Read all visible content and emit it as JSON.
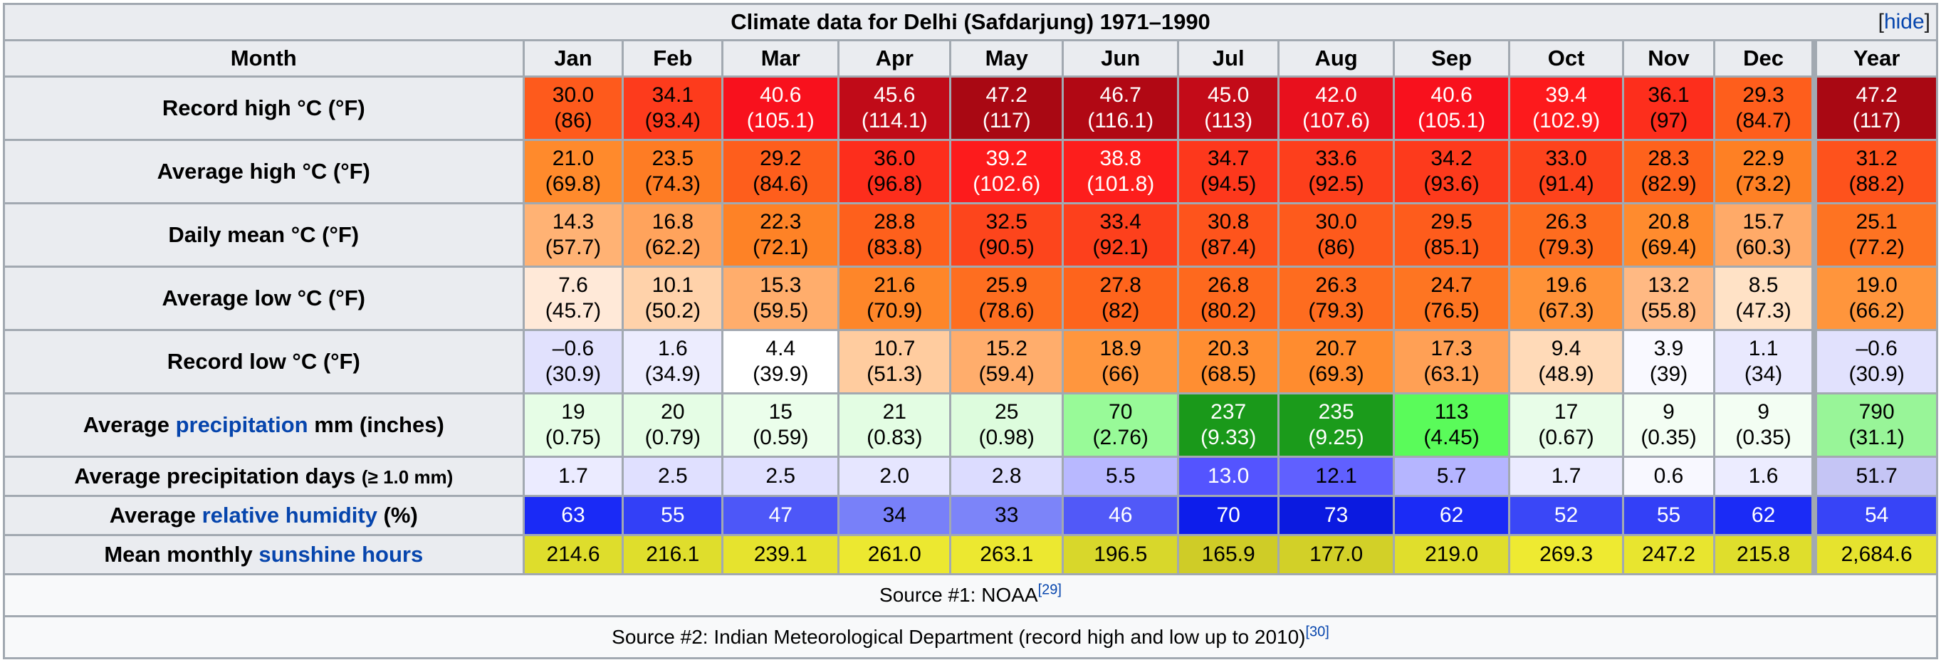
{
  "title": "Climate data for Delhi (Safdarjung) 1971–1990",
  "hide_link": {
    "open": "[",
    "label": "hide",
    "close": "]"
  },
  "header": {
    "month_label": "Month",
    "months": [
      "Jan",
      "Feb",
      "Mar",
      "Apr",
      "May",
      "Jun",
      "Jul",
      "Aug",
      "Sep",
      "Oct",
      "Nov",
      "Dec"
    ],
    "year_label": "Year"
  },
  "rows": [
    {
      "label_parts": [
        {
          "text": "Record high °C (°F)",
          "link": false
        }
      ],
      "cells": [
        {
          "c": "30.0",
          "f": "(86)",
          "bg": "#fe5a1c",
          "fg": "#000000"
        },
        {
          "c": "34.1",
          "f": "(93.4)",
          "bg": "#fd3b1c",
          "fg": "#000000"
        },
        {
          "c": "40.6",
          "f": "(105.1)",
          "bg": "#f8111d",
          "fg": "#ffffff"
        },
        {
          "c": "45.6",
          "f": "(114.1)",
          "bg": "#c00b18",
          "fg": "#ffffff"
        },
        {
          "c": "47.2",
          "f": "(117)",
          "bg": "#a90813",
          "fg": "#ffffff"
        },
        {
          "c": "46.7",
          "f": "(116.1)",
          "bg": "#b10814",
          "fg": "#ffffff"
        },
        {
          "c": "45.0",
          "f": "(113)",
          "bg": "#c30b18",
          "fg": "#ffffff"
        },
        {
          "c": "42.0",
          "f": "(107.6)",
          "bg": "#e8101d",
          "fg": "#ffffff"
        },
        {
          "c": "40.6",
          "f": "(105.1)",
          "bg": "#f8111d",
          "fg": "#ffffff"
        },
        {
          "c": "39.4",
          "f": "(102.9)",
          "bg": "#fd1a1c",
          "fg": "#ffffff"
        },
        {
          "c": "36.1",
          "f": "(97)",
          "bg": "#fd2e1c",
          "fg": "#000000"
        },
        {
          "c": "29.3",
          "f": "(84.7)",
          "bg": "#fe5e1c",
          "fg": "#000000"
        }
      ],
      "year": {
        "c": "47.2",
        "f": "(117)",
        "bg": "#a90813",
        "fg": "#ffffff"
      }
    },
    {
      "label_parts": [
        {
          "text": "Average high °C (°F)",
          "link": false
        }
      ],
      "cells": [
        {
          "c": "21.0",
          "f": "(69.8)",
          "bg": "#ff8a2c",
          "fg": "#000000"
        },
        {
          "c": "23.5",
          "f": "(74.3)",
          "bg": "#fe7c24",
          "fg": "#000000"
        },
        {
          "c": "29.2",
          "f": "(84.6)",
          "bg": "#fe5e1c",
          "fg": "#000000"
        },
        {
          "c": "36.0",
          "f": "(96.8)",
          "bg": "#fd2e1c",
          "fg": "#000000"
        },
        {
          "c": "39.2",
          "f": "(102.6)",
          "bg": "#fd1b1c",
          "fg": "#ffffff"
        },
        {
          "c": "38.8",
          "f": "(101.8)",
          "bg": "#fd1e1c",
          "fg": "#ffffff"
        },
        {
          "c": "34.7",
          "f": "(94.5)",
          "bg": "#fd381c",
          "fg": "#000000"
        },
        {
          "c": "33.6",
          "f": "(92.5)",
          "bg": "#fd3f1c",
          "fg": "#000000"
        },
        {
          "c": "34.2",
          "f": "(93.6)",
          "bg": "#fd3a1c",
          "fg": "#000000"
        },
        {
          "c": "33.0",
          "f": "(91.4)",
          "bg": "#fd431c",
          "fg": "#000000"
        },
        {
          "c": "28.3",
          "f": "(82.9)",
          "bg": "#fe621c",
          "fg": "#000000"
        },
        {
          "c": "22.9",
          "f": "(73.2)",
          "bg": "#fe8024",
          "fg": "#000000"
        }
      ],
      "year": {
        "c": "31.2",
        "f": "(88.2)",
        "bg": "#fe521c",
        "fg": "#000000"
      }
    },
    {
      "label_parts": [
        {
          "text": "Daily mean °C (°F)",
          "link": false
        }
      ],
      "cells": [
        {
          "c": "14.3",
          "f": "(57.7)",
          "bg": "#ffb274",
          "fg": "#000000"
        },
        {
          "c": "16.8",
          "f": "(62.2)",
          "bg": "#ffa35c",
          "fg": "#000000"
        },
        {
          "c": "22.3",
          "f": "(72.1)",
          "bg": "#fe8226",
          "fg": "#000000"
        },
        {
          "c": "28.8",
          "f": "(83.8)",
          "bg": "#fe601c",
          "fg": "#000000"
        },
        {
          "c": "32.5",
          "f": "(90.5)",
          "bg": "#fd451c",
          "fg": "#000000"
        },
        {
          "c": "33.4",
          "f": "(92.1)",
          "bg": "#fd401c",
          "fg": "#000000"
        },
        {
          "c": "30.8",
          "f": "(87.4)",
          "bg": "#fe541c",
          "fg": "#000000"
        },
        {
          "c": "30.0",
          "f": "(86)",
          "bg": "#fe5a1c",
          "fg": "#000000"
        },
        {
          "c": "29.5",
          "f": "(85.1)",
          "bg": "#fe5c1c",
          "fg": "#000000"
        },
        {
          "c": "26.3",
          "f": "(79.3)",
          "bg": "#fe6c1f",
          "fg": "#000000"
        },
        {
          "c": "20.8",
          "f": "(69.4)",
          "bg": "#ff8b2e",
          "fg": "#000000"
        },
        {
          "c": "15.7",
          "f": "(60.3)",
          "bg": "#ffaa68",
          "fg": "#000000"
        }
      ],
      "year": {
        "c": "25.1",
        "f": "(77.2)",
        "bg": "#fe7322",
        "fg": "#000000"
      }
    },
    {
      "label_parts": [
        {
          "text": "Average low °C (°F)",
          "link": false
        }
      ],
      "cells": [
        {
          "c": "7.6",
          "f": "(45.7)",
          "bg": "#ffe9d8",
          "fg": "#000000"
        },
        {
          "c": "10.1",
          "f": "(50.2)",
          "bg": "#ffd2aa",
          "fg": "#000000"
        },
        {
          "c": "15.3",
          "f": "(59.5)",
          "bg": "#ffad6c",
          "fg": "#000000"
        },
        {
          "c": "21.6",
          "f": "(70.9)",
          "bg": "#fe8629",
          "fg": "#000000"
        },
        {
          "c": "25.9",
          "f": "(78.6)",
          "bg": "#fe6e20",
          "fg": "#000000"
        },
        {
          "c": "27.8",
          "f": "(82)",
          "bg": "#fe641c",
          "fg": "#000000"
        },
        {
          "c": "26.8",
          "f": "(80.2)",
          "bg": "#fe691e",
          "fg": "#000000"
        },
        {
          "c": "26.3",
          "f": "(79.3)",
          "bg": "#fe6c1f",
          "fg": "#000000"
        },
        {
          "c": "24.7",
          "f": "(76.5)",
          "bg": "#fe7522",
          "fg": "#000000"
        },
        {
          "c": "19.6",
          "f": "(67.3)",
          "bg": "#ff9238",
          "fg": "#000000"
        },
        {
          "c": "13.2",
          "f": "(55.8)",
          "bg": "#ffb983",
          "fg": "#000000"
        },
        {
          "c": "8.5",
          "f": "(47.3)",
          "bg": "#ffe2c6",
          "fg": "#000000"
        }
      ],
      "year": {
        "c": "19.0",
        "f": "(66.2)",
        "bg": "#ff953c",
        "fg": "#000000"
      }
    },
    {
      "label_parts": [
        {
          "text": "Record low °C (°F)",
          "link": false
        }
      ],
      "cells": [
        {
          "c": "–0.6",
          "f": "(30.9)",
          "bg": "#e1e1fd",
          "fg": "#000000"
        },
        {
          "c": "1.6",
          "f": "(34.9)",
          "bg": "#ececfe",
          "fg": "#000000"
        },
        {
          "c": "4.4",
          "f": "(39.9)",
          "bg": "#ffffff",
          "fg": "#000000"
        },
        {
          "c": "10.7",
          "f": "(51.3)",
          "bg": "#ffcc9f",
          "fg": "#000000"
        },
        {
          "c": "15.2",
          "f": "(59.4)",
          "bg": "#ffad6c",
          "fg": "#000000"
        },
        {
          "c": "18.9",
          "f": "(66)",
          "bg": "#ff963e",
          "fg": "#000000"
        },
        {
          "c": "20.3",
          "f": "(68.5)",
          "bg": "#ff8e32",
          "fg": "#000000"
        },
        {
          "c": "20.7",
          "f": "(69.3)",
          "bg": "#ff8c2f",
          "fg": "#000000"
        },
        {
          "c": "17.3",
          "f": "(63.1)",
          "bg": "#ffa055",
          "fg": "#000000"
        },
        {
          "c": "9.4",
          "f": "(48.9)",
          "bg": "#ffdab8",
          "fg": "#000000"
        },
        {
          "c": "3.9",
          "f": "(39)",
          "bg": "#f9f9ff",
          "fg": "#000000"
        },
        {
          "c": "1.1",
          "f": "(34)",
          "bg": "#e9e9fe",
          "fg": "#000000"
        }
      ],
      "year": {
        "c": "–0.6",
        "f": "(30.9)",
        "bg": "#e1e1fd",
        "fg": "#000000"
      }
    },
    {
      "label_parts": [
        {
          "text": "Average ",
          "link": false
        },
        {
          "text": "precipitation",
          "link": true
        },
        {
          "text": " mm (inches)",
          "link": false
        }
      ],
      "cells": [
        {
          "c": "19",
          "f": "(0.75)",
          "bg": "#e6fde6",
          "fg": "#000000"
        },
        {
          "c": "20",
          "f": "(0.79)",
          "bg": "#e5fde5",
          "fg": "#000000"
        },
        {
          "c": "15",
          "f": "(0.59)",
          "bg": "#ebfeeb",
          "fg": "#000000"
        },
        {
          "c": "21",
          "f": "(0.83)",
          "bg": "#e3fde3",
          "fg": "#000000"
        },
        {
          "c": "25",
          "f": "(0.98)",
          "bg": "#ddfcdd",
          "fg": "#000000"
        },
        {
          "c": "70",
          "f": "(2.76)",
          "bg": "#98fa98",
          "fg": "#000000"
        },
        {
          "c": "237",
          "f": "(9.33)",
          "bg": "#1a991a",
          "fg": "#ffffff"
        },
        {
          "c": "235",
          "f": "(9.25)",
          "bg": "#1b9b1b",
          "fg": "#ffffff"
        },
        {
          "c": "113",
          "f": "(4.45)",
          "bg": "#5afb5a",
          "fg": "#000000"
        },
        {
          "c": "17",
          "f": "(0.67)",
          "bg": "#e8fde8",
          "fg": "#000000"
        },
        {
          "c": "9",
          "f": "(0.35)",
          "bg": "#f3fef3",
          "fg": "#000000"
        },
        {
          "c": "9",
          "f": "(0.35)",
          "bg": "#f3fef3",
          "fg": "#000000"
        }
      ],
      "year": {
        "c": "790",
        "f": "(31.1)",
        "bg": "#98f598",
        "fg": "#000000"
      }
    },
    {
      "label_parts": [
        {
          "text": "Average precipitation days ",
          "link": false
        },
        {
          "text": "(≥ 1.0 mm)",
          "link": false,
          "small": true
        }
      ],
      "single": true,
      "cells": [
        {
          "c": "1.7",
          "bg": "#ebebff",
          "fg": "#000000"
        },
        {
          "c": "2.5",
          "bg": "#e0e0ff",
          "fg": "#000000"
        },
        {
          "c": "2.5",
          "bg": "#e0e0ff",
          "fg": "#000000"
        },
        {
          "c": "2.0",
          "bg": "#e6e6ff",
          "fg": "#000000"
        },
        {
          "c": "2.8",
          "bg": "#dcdcff",
          "fg": "#000000"
        },
        {
          "c": "5.5",
          "bg": "#b8b8ff",
          "fg": "#000000"
        },
        {
          "c": "13.0",
          "bg": "#5454ff",
          "fg": "#ffffff"
        },
        {
          "c": "12.1",
          "bg": "#6060ff",
          "fg": "#000000"
        },
        {
          "c": "5.7",
          "bg": "#b5b5ff",
          "fg": "#000000"
        },
        {
          "c": "1.7",
          "bg": "#ebebff",
          "fg": "#000000"
        },
        {
          "c": "0.6",
          "bg": "#f8f8ff",
          "fg": "#000000"
        },
        {
          "c": "1.6",
          "bg": "#ececff",
          "fg": "#000000"
        }
      ],
      "year": {
        "c": "51.7",
        "bg": "#c5c5f5",
        "fg": "#000000"
      }
    },
    {
      "label_parts": [
        {
          "text": "Average ",
          "link": false
        },
        {
          "text": "relative humidity",
          "link": true
        },
        {
          "text": " (%)",
          "link": false
        }
      ],
      "single": true,
      "cells": [
        {
          "c": "63",
          "bg": "#1a2af6",
          "fg": "#ffffff"
        },
        {
          "c": "55",
          "bg": "#3340f7",
          "fg": "#ffffff"
        },
        {
          "c": "47",
          "bg": "#4d57f8",
          "fg": "#ffffff"
        },
        {
          "c": "34",
          "bg": "#7880f9",
          "fg": "#000000"
        },
        {
          "c": "33",
          "bg": "#7c84f9",
          "fg": "#000000"
        },
        {
          "c": "46",
          "bg": "#5159f8",
          "fg": "#ffffff"
        },
        {
          "c": "70",
          "bg": "#0d1deb",
          "fg": "#ffffff"
        },
        {
          "c": "73",
          "bg": "#0b1ae0",
          "fg": "#ffffff"
        },
        {
          "c": "62",
          "bg": "#1b2bf6",
          "fg": "#ffffff"
        },
        {
          "c": "52",
          "bg": "#3a47f7",
          "fg": "#ffffff"
        },
        {
          "c": "55",
          "bg": "#3340f7",
          "fg": "#ffffff"
        },
        {
          "c": "62",
          "bg": "#1b2bf6",
          "fg": "#ffffff"
        }
      ],
      "year": {
        "c": "54",
        "bg": "#3744f7",
        "fg": "#ffffff"
      }
    },
    {
      "label_parts": [
        {
          "text": "Mean monthly ",
          "link": false
        },
        {
          "text": "sunshine hours",
          "link": true
        }
      ],
      "single": true,
      "cells": [
        {
          "c": "214.6",
          "bg": "#dedd2c",
          "fg": "#000000"
        },
        {
          "c": "216.1",
          "bg": "#dfde2c",
          "fg": "#000000"
        },
        {
          "c": "239.1",
          "bg": "#e6e32e",
          "fg": "#000000"
        },
        {
          "c": "261.0",
          "bg": "#ece830",
          "fg": "#000000"
        },
        {
          "c": "263.1",
          "bg": "#ece830",
          "fg": "#000000"
        },
        {
          "c": "196.5",
          "bg": "#d8d72b",
          "fg": "#000000"
        },
        {
          "c": "165.9",
          "bg": "#cfcc27",
          "fg": "#000000"
        },
        {
          "c": "177.0",
          "bg": "#d2d028",
          "fg": "#000000"
        },
        {
          "c": "219.0",
          "bg": "#e0de2c",
          "fg": "#000000"
        },
        {
          "c": "269.3",
          "bg": "#eeea31",
          "fg": "#000000"
        },
        {
          "c": "247.2",
          "bg": "#e8e52f",
          "fg": "#000000"
        },
        {
          "c": "215.8",
          "bg": "#dfde2c",
          "fg": "#000000"
        }
      ],
      "year": {
        "c": "2,684.6",
        "bg": "#e6e32e",
        "fg": "#000000"
      }
    }
  ],
  "sources": [
    {
      "text": "Source #1: NOAA",
      "ref": "[29]"
    },
    {
      "text": "Source #2: Indian Meteorological Department (record high and low up to 2010)",
      "ref": "[30]"
    }
  ]
}
